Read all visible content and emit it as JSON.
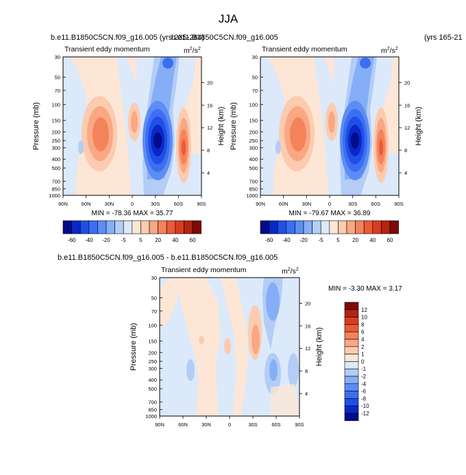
{
  "page_title": "JJA",
  "units_prefix": "m",
  "units_exp1": "2",
  "units_mid": "/s",
  "units_exp2": "2",
  "colors": {
    "neg": [
      "#000c8c",
      "#0a28c8",
      "#1f4fe6",
      "#3c6ef2",
      "#5b8df5",
      "#86aef6",
      "#b3cdf6",
      "#dbe9fb"
    ],
    "pos": [
      "#fde6d6",
      "#fccbb0",
      "#f9a883",
      "#f4835c",
      "#ec5a36",
      "#d93c1e",
      "#b32410",
      "#7e0a06"
    ]
  },
  "chart_data": [
    {
      "type": "contour",
      "panel": "top-left",
      "case_title": "b.e11.B1850C5CN.f09_g16.005 (yrs 235-284)",
      "overlap_title": "b.e11.B1850C5CN.f09_g16.005",
      "field_label": "Transient eddy momentum",
      "x_ticks": [
        "90N",
        "60N",
        "30N",
        "0",
        "30S",
        "60S",
        "90S"
      ],
      "y_ticks": [
        "30",
        "50",
        "70",
        "100",
        "150",
        "200",
        "250",
        "300",
        "400",
        "500",
        "700",
        "850",
        "1000"
      ],
      "y2_ticks": [
        "20",
        "16",
        "12",
        "8",
        "4"
      ],
      "ylabel": "Pressure (mb)",
      "y2label": "Height (km)",
      "min_max": "MIN = -78.36  MAX = 35.77",
      "colorbar_ticks": [
        "-60",
        "-40",
        "-20",
        "-5",
        "5",
        "20",
        "40",
        "60"
      ],
      "ylim": [
        1000,
        30
      ]
    },
    {
      "type": "contour",
      "panel": "top-right",
      "case_title": "(yrs 165-21",
      "field_label": "Transient eddy momentum",
      "x_ticks": [
        "90N",
        "60N",
        "30N",
        "0",
        "30S",
        "60S",
        "90S"
      ],
      "y_ticks": [
        "30",
        "50",
        "70",
        "100",
        "150",
        "200",
        "250",
        "300",
        "400",
        "500",
        "700",
        "850",
        "1000"
      ],
      "y2_ticks": [
        "20",
        "16",
        "12",
        "8",
        "4"
      ],
      "ylabel": "Pressure (mb)",
      "y2label": "Height (km)",
      "min_max": "MIN = -79.67  MAX = 36.89",
      "colorbar_ticks": [
        "-60",
        "-40",
        "-20",
        "-5",
        "5",
        "20",
        "40",
        "60"
      ],
      "ylim": [
        1000,
        30
      ]
    },
    {
      "type": "contour",
      "panel": "bottom-difference",
      "case_title": "b.e11.B1850C5CN.f09_g16.005 - b.e11.B1850C5CN.f09_g16.005",
      "field_label": "Transient eddy momentum",
      "x_ticks": [
        "90N",
        "60N",
        "30N",
        "0",
        "30S",
        "60S",
        "90S"
      ],
      "y_ticks": [
        "30",
        "50",
        "70",
        "100",
        "150",
        "200",
        "250",
        "300",
        "400",
        "500",
        "700",
        "850",
        "1000"
      ],
      "y2_ticks": [
        "20",
        "16",
        "12",
        "8",
        "4"
      ],
      "ylabel": "Pressure (mb)",
      "y2label": "Height (km)",
      "min_max": "MIN = -3.30  MAX =  3.17",
      "colorbar_ticks": [
        "12",
        "10",
        "8",
        "6",
        "4",
        "2",
        "1",
        "0",
        "-1",
        "-2",
        "-4",
        "-6",
        "-8",
        "-10",
        "-12"
      ],
      "ylim": [
        1000,
        30
      ]
    }
  ]
}
